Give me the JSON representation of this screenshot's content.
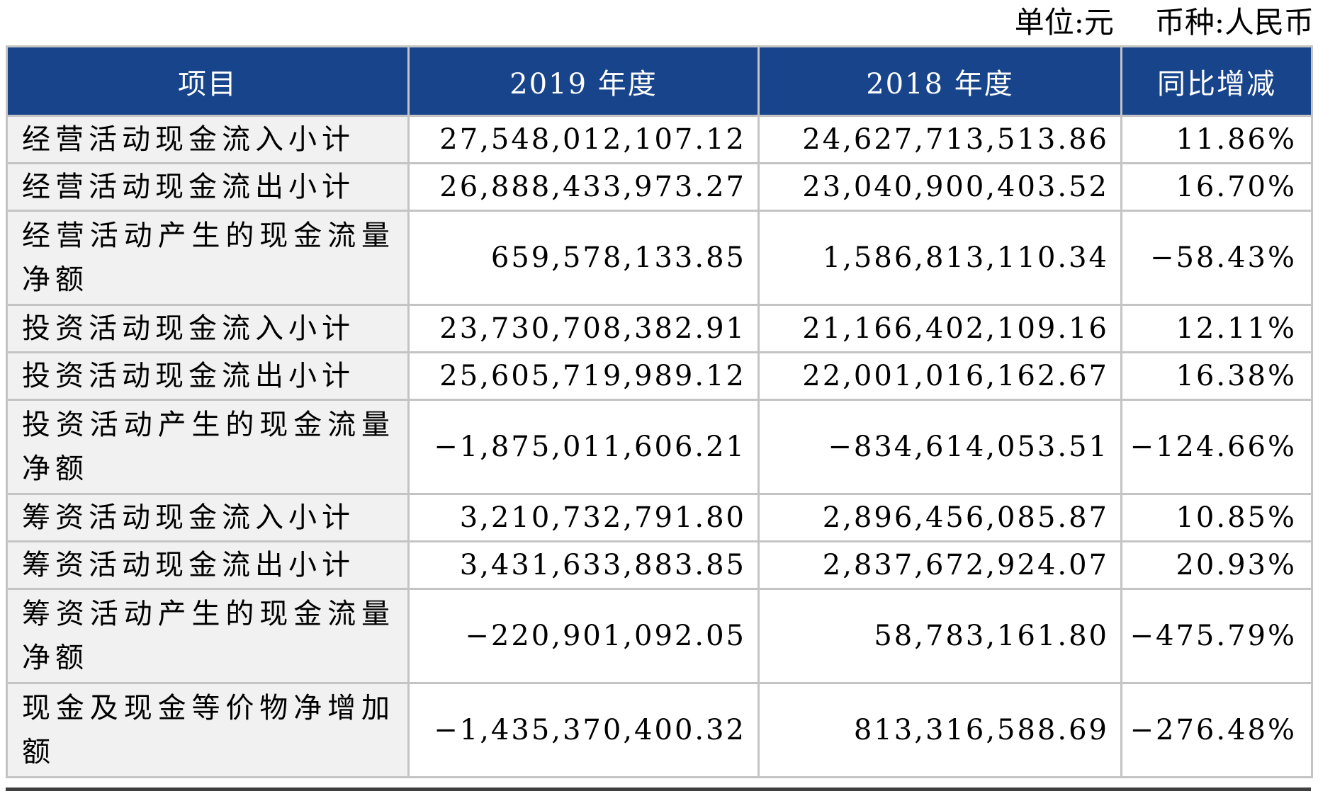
{
  "meta": {
    "unit_label": "单位:元",
    "currency_label": "币种:人民币"
  },
  "table": {
    "columns": [
      "项目",
      "2019 年度",
      "2018 年度",
      "同比增减"
    ],
    "rows": [
      {
        "item": "经营活动现金流入小计",
        "y2019": "27,548,012,107.12",
        "y2018": "24,627,713,513.86",
        "change": "11.86%"
      },
      {
        "item": "经营活动现金流出小计",
        "y2019": "26,888,433,973.27",
        "y2018": "23,040,900,403.52",
        "change": "16.70%"
      },
      {
        "item": "经营活动产生的现金流量净额",
        "y2019": "659,578,133.85",
        "y2018": "1,586,813,110.34",
        "change": "−58.43%"
      },
      {
        "item": "投资活动现金流入小计",
        "y2019": "23,730,708,382.91",
        "y2018": "21,166,402,109.16",
        "change": "12.11%"
      },
      {
        "item": "投资活动现金流出小计",
        "y2019": "25,605,719,989.12",
        "y2018": "22,001,016,162.67",
        "change": "16.38%"
      },
      {
        "item": "投资活动产生的现金流量净额",
        "y2019": "−1,875,011,606.21",
        "y2018": "−834,614,053.51",
        "change": "−124.66%"
      },
      {
        "item": "筹资活动现金流入小计",
        "y2019": "3,210,732,791.80",
        "y2018": "2,896,456,085.87",
        "change": "10.85%"
      },
      {
        "item": "筹资活动现金流出小计",
        "y2019": "3,431,633,883.85",
        "y2018": "2,837,672,924.07",
        "change": "20.93%"
      },
      {
        "item": "筹资活动产生的现金流量净额",
        "y2019": "−220,901,092.05",
        "y2018": "58,783,161.80",
        "change": "−475.79%"
      },
      {
        "item": "现金及现金等价物净增加额",
        "y2019": "−1,435,370,400.32",
        "y2018": "813,316,588.69",
        "change": "−276.48%"
      }
    ]
  },
  "colors": {
    "header_bg": "#17448a",
    "header_text": "#ffffff",
    "label_bg": "#f1f1f1",
    "border": "#c4c4c4",
    "text": "#000000",
    "bottom_rule": "#3f3f3f"
  }
}
